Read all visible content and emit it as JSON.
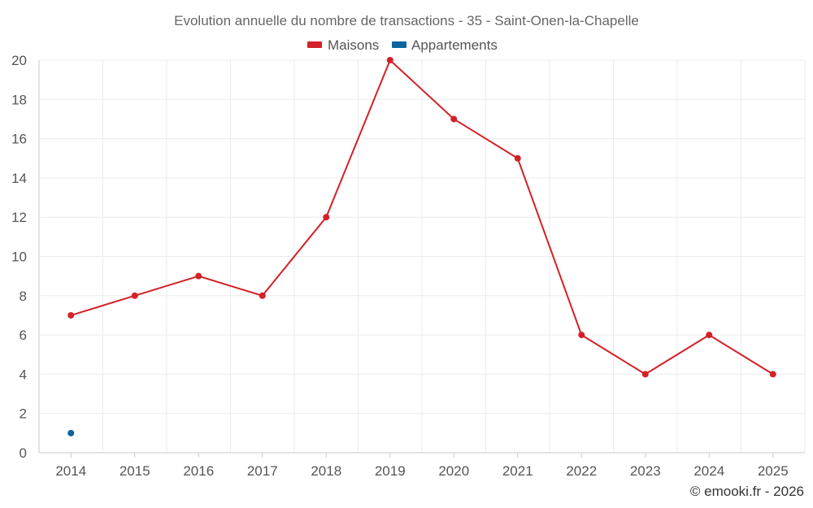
{
  "chart_data": {
    "type": "line",
    "title": "Evolution annuelle du nombre de transactions - 35 - Saint-Onen-la-Chapelle",
    "categories": [
      "2014",
      "2015",
      "2016",
      "2017",
      "2018",
      "2019",
      "2020",
      "2021",
      "2022",
      "2023",
      "2024",
      "2025"
    ],
    "series": [
      {
        "name": "Maisons",
        "color": "#d32127",
        "values": [
          7,
          8,
          9,
          8,
          12,
          20,
          17,
          15,
          6,
          4,
          6,
          4
        ]
      },
      {
        "name": "Appartements",
        "color": "#0b64a0",
        "values": [
          1,
          null,
          null,
          null,
          null,
          null,
          null,
          null,
          null,
          null,
          null,
          null
        ]
      }
    ],
    "y_ticks": [
      "0",
      "2",
      "4",
      "6",
      "8",
      "10",
      "12",
      "14",
      "16",
      "18",
      "20"
    ],
    "ylim": [
      0,
      20
    ],
    "xlabel": "",
    "ylabel": "",
    "grid": true,
    "legend_position": "top-center"
  },
  "credit": "© emooki.fr - 2026"
}
